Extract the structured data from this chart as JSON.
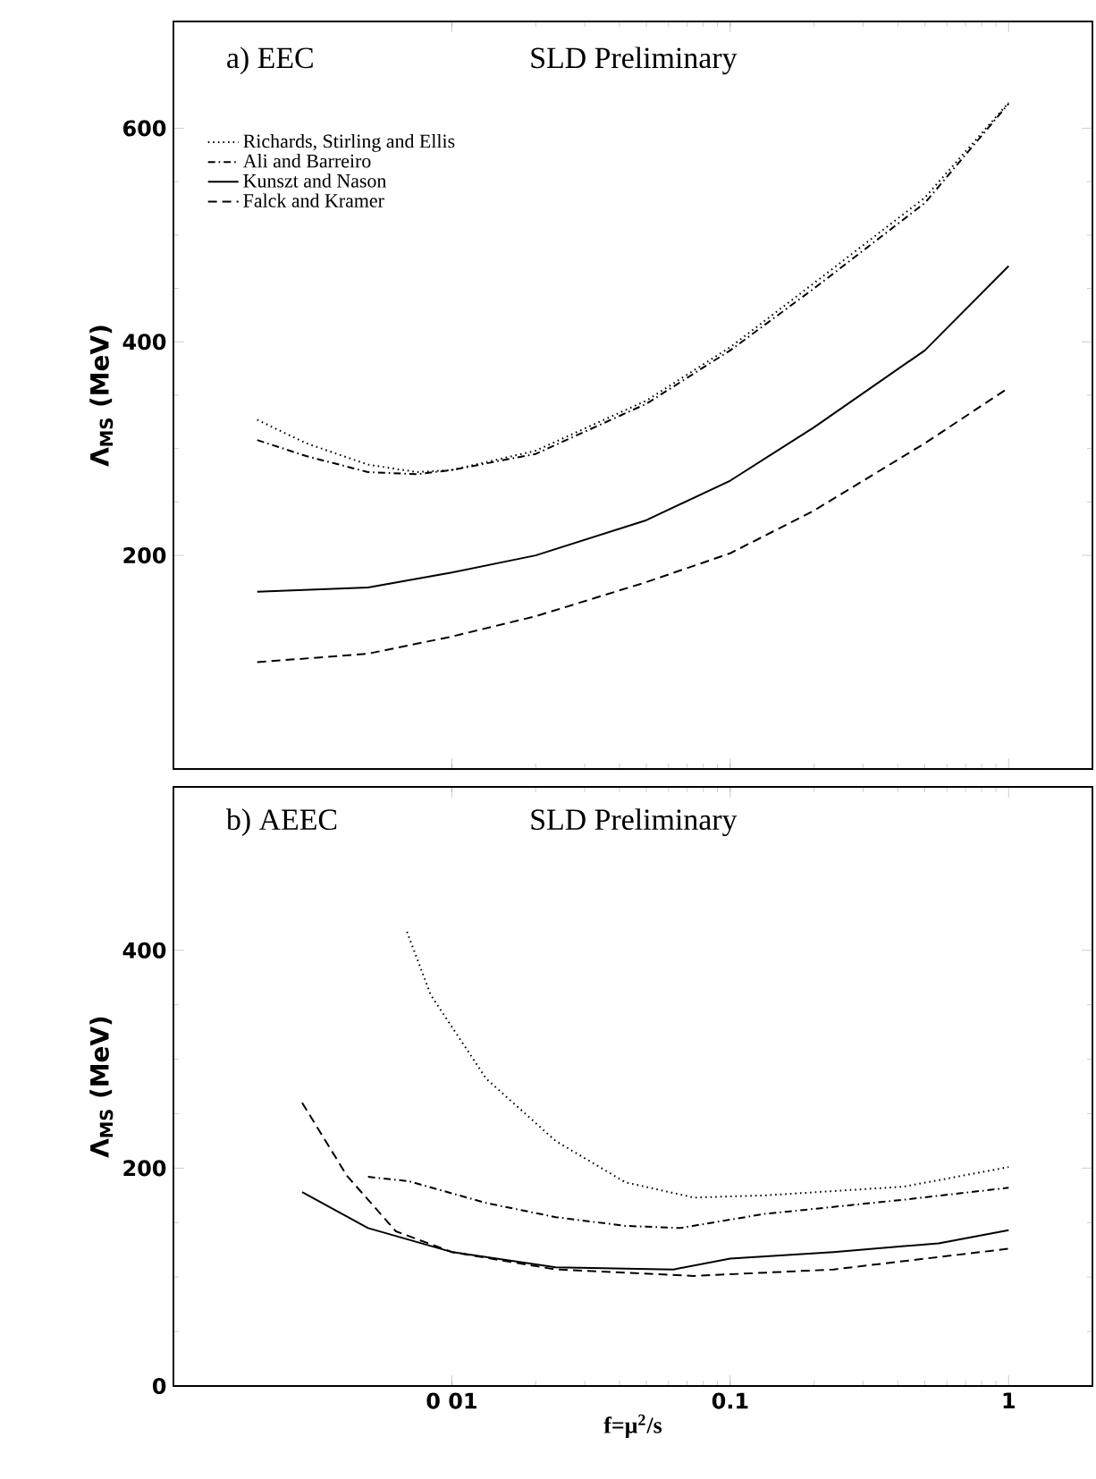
{
  "chart_data": [
    {
      "type": "line",
      "title": "a) EEC",
      "subtitle": "SLD Preliminary",
      "ylabel": "Λ$_{MS}$ (MeV)",
      "log": "x",
      "xlim": [
        0.001,
        2
      ],
      "xticks": [
        0.01,
        0.1,
        1
      ],
      "ylim": [
        0,
        700
      ],
      "yticks": [
        200,
        400,
        600
      ],
      "tick_labels": "y",
      "legend": "top left",
      "grid": false,
      "marker": "none",
      "series": [
        {
          "name": "Richards, Stirling and Ellis",
          "color": "#000000",
          "line_style": "dotted",
          "x": [
            0.002,
            0.003,
            0.005,
            0.0075,
            0.01,
            0.02,
            0.05,
            0.1,
            0.2,
            0.5,
            1
          ],
          "values": [
            327,
            305,
            285,
            278,
            280,
            298,
            345,
            395,
            455,
            535,
            624
          ]
        },
        {
          "name": "Ali and Barreiro",
          "color": "#000000",
          "line_style": "dashdot",
          "x": [
            0.002,
            0.003,
            0.005,
            0.0075,
            0.01,
            0.02,
            0.05,
            0.1,
            0.2,
            0.5,
            1
          ],
          "values": [
            308,
            293,
            278,
            276,
            280,
            295,
            342,
            392,
            450,
            530,
            623
          ]
        },
        {
          "name": "Kunszt and Nason",
          "color": "#000000",
          "line_style": "solid",
          "x": [
            0.002,
            0.005,
            0.01,
            0.02,
            0.05,
            0.1,
            0.2,
            0.5,
            1
          ],
          "values": [
            166,
            170,
            184,
            200,
            233,
            270,
            320,
            392,
            471
          ]
        },
        {
          "name": "Falck and Kramer",
          "color": "#000000",
          "line_style": "dashed",
          "x": [
            0.002,
            0.005,
            0.01,
            0.02,
            0.05,
            0.1,
            0.2,
            0.5,
            1
          ],
          "values": [
            100,
            108,
            124,
            143,
            175,
            202,
            242,
            305,
            357
          ]
        }
      ]
    },
    {
      "type": "line",
      "title": "b) AEEC",
      "subtitle": "SLD Preliminary",
      "xlabel": "f=μ$^{2}$/s",
      "ylabel": "Λ$_{MS}$ (MeV)",
      "log": "x",
      "xlim": [
        0.001,
        2
      ],
      "xticks": [
        {
          "value": 0.01,
          "label": "0 01"
        },
        0.1,
        1
      ],
      "ylim": [
        0,
        550
      ],
      "yticks": [
        0,
        200,
        400
      ],
      "grid": false,
      "marker": "none",
      "series": [
        {
          "color": "#000000",
          "line_style": "dotted",
          "x": [
            0.0069,
            0.0084,
            0.0133,
            0.0236,
            0.042,
            0.074,
            0.133,
            0.42,
            1
          ],
          "values": [
            417,
            359,
            282,
            225,
            187,
            173,
            175,
            183,
            201
          ]
        },
        {
          "color": "#000000",
          "line_style": "dashdot",
          "x": [
            0.005,
            0.007,
            0.0133,
            0.0236,
            0.042,
            0.066,
            0.133,
            0.42,
            1
          ],
          "values": [
            192,
            188,
            168,
            155,
            147,
            145,
            158,
            171,
            182
          ]
        },
        {
          "color": "#000000",
          "line_style": "solid",
          "x": [
            0.0029,
            0.005,
            0.01,
            0.0236,
            0.0625,
            0.1,
            0.235,
            0.56,
            1
          ],
          "values": [
            178,
            145,
            123,
            109,
            107,
            117,
            123,
            131,
            143
          ]
        },
        {
          "color": "#000000",
          "line_style": "dashed",
          "x": [
            0.0029,
            0.0042,
            0.0063,
            0.01,
            0.0236,
            0.074,
            0.235,
            1
          ],
          "values": [
            260,
            193,
            142,
            123,
            107,
            101,
            107,
            126
          ]
        }
      ]
    }
  ]
}
